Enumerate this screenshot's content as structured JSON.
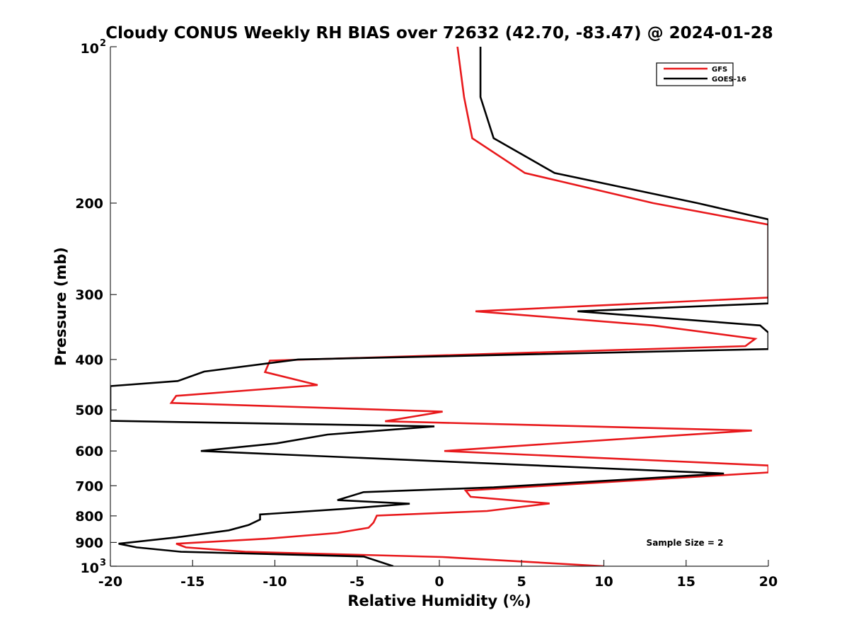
{
  "chart_data": {
    "type": "line",
    "title": "Cloudy CONUS Weekly RH BIAS over 72632 (42.70, -83.47) @ 2024-01-28",
    "xlabel": "Relative Humidity (%)",
    "ylabel": "Pressure (mb)",
    "xlim": [
      -20,
      20
    ],
    "ylim": [
      100,
      1000
    ],
    "y_scale": "log",
    "y_reversed": true,
    "x_ticks": [
      "-20",
      "-15",
      "-10",
      "-5",
      "0",
      "5",
      "10",
      "15",
      "20"
    ],
    "y_ticks": [
      {
        "value": 100,
        "base": "10",
        "exp": "2"
      },
      {
        "value": 200,
        "label": "200"
      },
      {
        "value": 300,
        "label": "300"
      },
      {
        "value": 400,
        "label": "400"
      },
      {
        "value": 500,
        "label": "500"
      },
      {
        "value": 600,
        "label": "600"
      },
      {
        "value": 700,
        "label": "700"
      },
      {
        "value": 800,
        "label": "800"
      },
      {
        "value": 900,
        "label": "900"
      },
      {
        "value": 1000,
        "base": "10",
        "exp": "3"
      }
    ],
    "grid": false,
    "legend_position": "top-right",
    "annotation": "Sample Size = 2",
    "series": [
      {
        "name": "GFS",
        "color": "#e8191c",
        "points": [
          [
            1.1,
            100
          ],
          [
            1.5,
            125
          ],
          [
            2.0,
            150
          ],
          [
            5.2,
            175
          ],
          [
            13.0,
            200
          ],
          [
            20.0,
            220
          ],
          [
            20.0,
            304
          ],
          [
            2.2,
            323
          ],
          [
            13.0,
            344
          ],
          [
            19.2,
            365
          ],
          [
            18.6,
            377
          ],
          [
            -10.3,
            402
          ],
          [
            -10.6,
            423
          ],
          [
            -7.4,
            448
          ],
          [
            -16.0,
            470
          ],
          [
            -16.3,
            485
          ],
          [
            0.2,
            504
          ],
          [
            -3.3,
            526
          ],
          [
            19.0,
            548
          ],
          [
            10.7,
            570
          ],
          [
            6.4,
            582
          ],
          [
            0.3,
            600
          ],
          [
            20.0,
            640
          ],
          [
            20.0,
            660
          ],
          [
            1.6,
            715
          ],
          [
            1.9,
            735
          ],
          [
            6.7,
            757
          ],
          [
            2.9,
            783
          ],
          [
            -3.8,
            799
          ],
          [
            -4.0,
            824
          ],
          [
            -4.3,
            843
          ],
          [
            -6.2,
            863
          ],
          [
            -10.5,
            885
          ],
          [
            -16.0,
            905
          ],
          [
            -15.4,
            920
          ],
          [
            -11.8,
            938
          ],
          [
            0.2,
            960
          ],
          [
            10.0,
            1000
          ]
        ]
      },
      {
        "name": "GOES-16",
        "color": "#000000",
        "points": [
          [
            2.5,
            100
          ],
          [
            2.5,
            125
          ],
          [
            3.3,
            150
          ],
          [
            7.0,
            175
          ],
          [
            15.7,
            200
          ],
          [
            20.0,
            215
          ],
          [
            20.0,
            312
          ],
          [
            8.4,
            323
          ],
          [
            19.5,
            344
          ],
          [
            20.0,
            355
          ],
          [
            20.0,
            382
          ],
          [
            -8.6,
            400
          ],
          [
            -14.3,
            422
          ],
          [
            -15.9,
            440
          ],
          [
            -20.0,
            450
          ],
          [
            -20.0,
            525
          ],
          [
            -0.3,
            538
          ],
          [
            -6.8,
            558
          ],
          [
            -9.9,
            580
          ],
          [
            -14.5,
            600
          ],
          [
            17.3,
            663
          ],
          [
            11.7,
            680
          ],
          [
            8.3,
            690
          ],
          [
            3.3,
            705
          ],
          [
            -4.6,
            720
          ],
          [
            -6.2,
            746
          ],
          [
            -1.8,
            758
          ],
          [
            -5.6,
            775
          ],
          [
            -10.9,
            795
          ],
          [
            -10.9,
            813
          ],
          [
            -11.6,
            833
          ],
          [
            -12.8,
            853
          ],
          [
            -16.0,
            880
          ],
          [
            -19.5,
            905
          ],
          [
            -18.4,
            920
          ],
          [
            -15.7,
            938
          ],
          [
            -4.6,
            958
          ],
          [
            -2.8,
            1000
          ]
        ]
      }
    ]
  }
}
